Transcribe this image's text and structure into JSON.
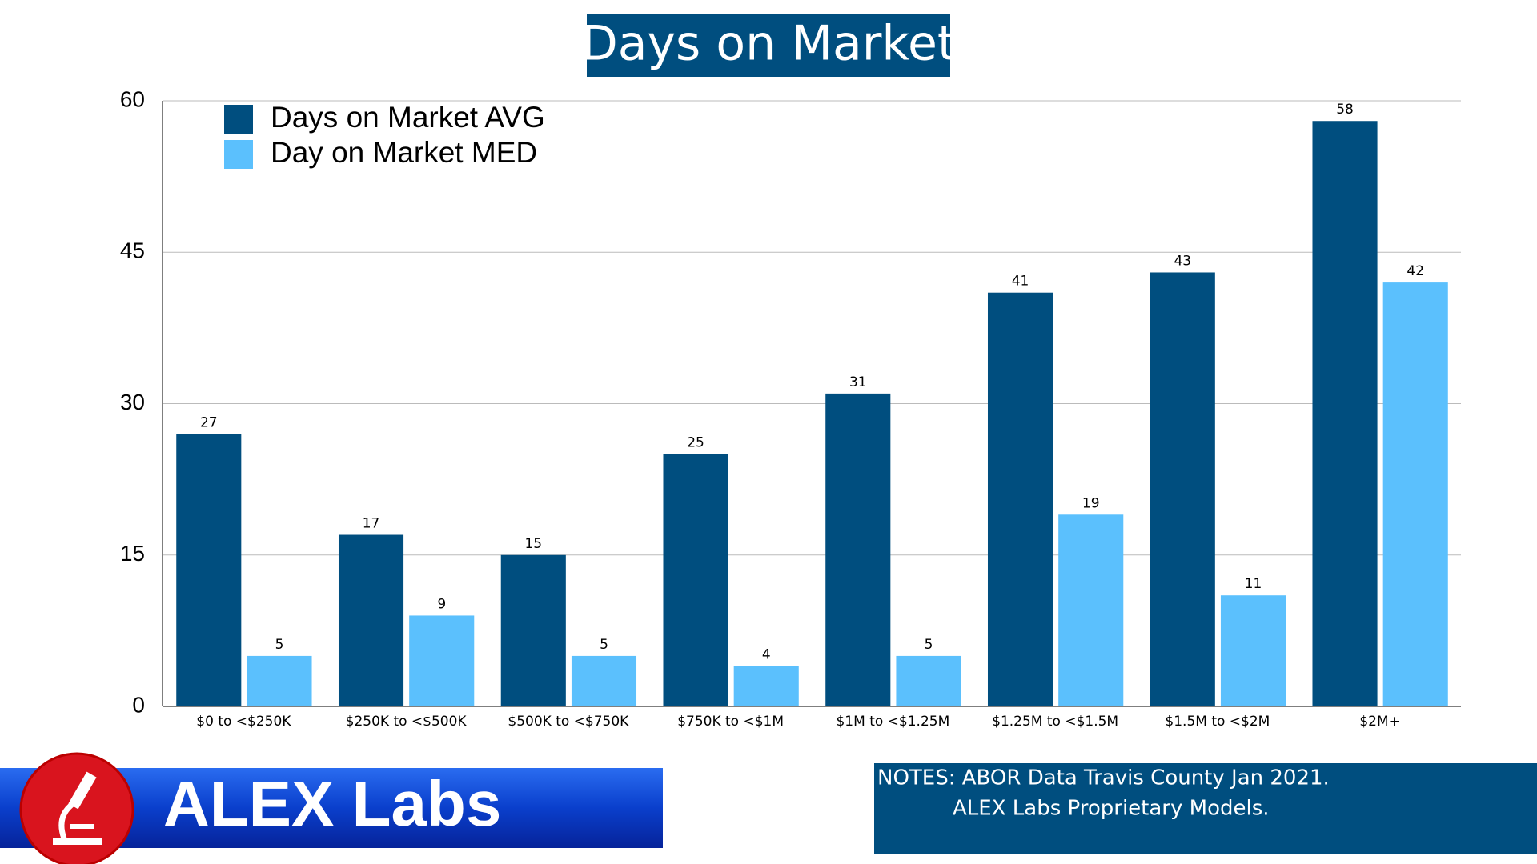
{
  "chart_data": {
    "type": "bar",
    "title": "Days on Market",
    "categories": [
      "$0 to <$250K",
      "$250K to <$500K",
      "$500K to <$750K",
      "$750K to <$1M",
      "$1M to <$1.25M",
      "$1.25M to <$1.5M",
      "$1.5M to <$2M",
      "$2M+"
    ],
    "series": [
      {
        "name": "Days on Market AVG",
        "color": "#004e7f",
        "values": [
          27,
          17,
          15,
          25,
          31,
          41,
          43,
          58
        ]
      },
      {
        "name": "Day on Market MED",
        "color": "#5bc0fd",
        "values": [
          5,
          9,
          5,
          4,
          5,
          19,
          11,
          42
        ]
      }
    ],
    "ylim": [
      0,
      60
    ],
    "yticks": [
      0,
      15,
      30,
      45,
      60
    ],
    "grid": true,
    "legend": "upper left"
  },
  "footer": {
    "brand": "ALEX Labs",
    "notes": [
      "NOTES: ABOR Data Travis County Jan 2021.",
      "ALEX Labs Proprietary Models."
    ]
  }
}
